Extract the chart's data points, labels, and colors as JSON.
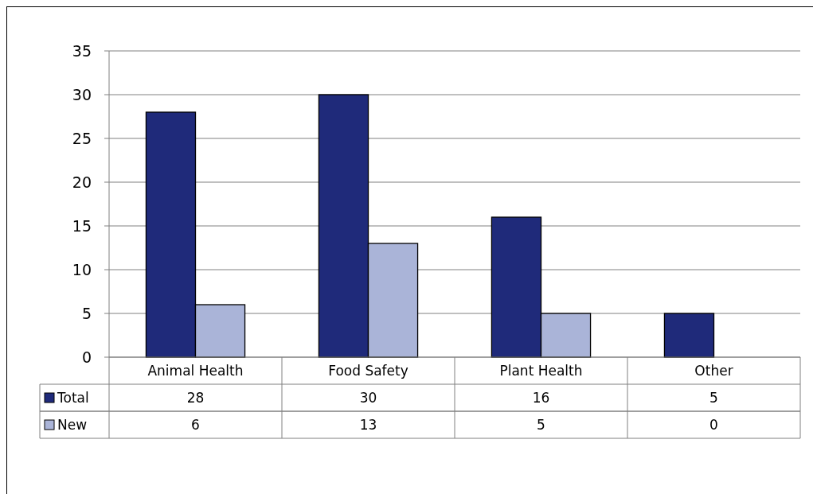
{
  "chart_data": {
    "type": "bar",
    "categories": [
      "Animal Health",
      "Food Safety",
      "Plant Health",
      "Other"
    ],
    "series": [
      {
        "name": "Total",
        "color": "#1f2a7a",
        "values": [
          28,
          30,
          16,
          5
        ]
      },
      {
        "name": "New",
        "color": "#aab4d8",
        "values": [
          6,
          13,
          5,
          0
        ]
      }
    ],
    "ylim": [
      0,
      35
    ],
    "yticks": [
      0,
      5,
      10,
      15,
      20,
      25,
      30,
      35
    ],
    "grid": "y",
    "legend": "bottom",
    "data_labels": true
  }
}
